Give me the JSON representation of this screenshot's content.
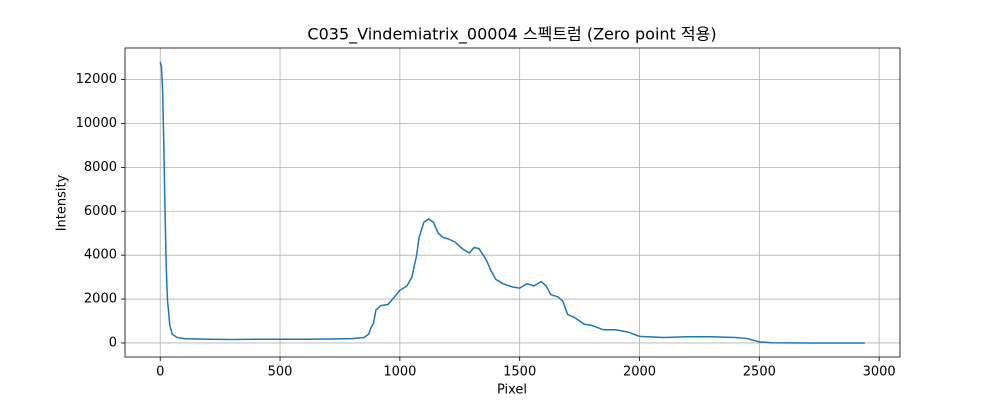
{
  "chart_data": {
    "type": "line",
    "title": "C035_Vindemiatrix_00004 스펙트럼 (Zero point 적용)",
    "x_label": "Pixel",
    "y_label": "Intensity",
    "x": [
      0,
      5,
      10,
      15,
      20,
      25,
      30,
      40,
      50,
      70,
      100,
      200,
      300,
      400,
      500,
      600,
      700,
      800,
      850,
      870,
      880,
      890,
      900,
      920,
      950,
      970,
      1000,
      1030,
      1050,
      1070,
      1080,
      1100,
      1120,
      1140,
      1160,
      1180,
      1200,
      1230,
      1260,
      1290,
      1310,
      1330,
      1360,
      1380,
      1400,
      1430,
      1470,
      1500,
      1530,
      1560,
      1590,
      1610,
      1630,
      1660,
      1680,
      1700,
      1730,
      1770,
      1800,
      1850,
      1900,
      1950,
      2000,
      2100,
      2200,
      2300,
      2400,
      2450,
      2500,
      2550,
      2700,
      2940
    ],
    "series": [
      {
        "color": "#1f77b4",
        "values": [
          12800,
          12600,
          11500,
          9000,
          6000,
          3500,
          2000,
          800,
          400,
          250,
          200,
          170,
          160,
          170,
          170,
          170,
          180,
          200,
          250,
          400,
          700,
          900,
          1500,
          1700,
          1750,
          2000,
          2400,
          2600,
          3000,
          4000,
          4800,
          5500,
          5650,
          5500,
          5000,
          4800,
          4750,
          4600,
          4300,
          4100,
          4350,
          4300,
          3800,
          3300,
          2900,
          2700,
          2550,
          2500,
          2700,
          2600,
          2800,
          2600,
          2200,
          2100,
          1900,
          1300,
          1150,
          850,
          800,
          600,
          600,
          500,
          300,
          250,
          280,
          280,
          250,
          200,
          50,
          10,
          0,
          0
        ]
      }
    ],
    "xlim": [
      -147,
      3087
    ],
    "ylim": [
      -640,
      13440
    ],
    "xticks": [
      0,
      500,
      1000,
      1500,
      2000,
      2500,
      3000
    ],
    "yticks": [
      0,
      2000,
      4000,
      6000,
      8000,
      10000,
      12000
    ],
    "grid": true
  }
}
